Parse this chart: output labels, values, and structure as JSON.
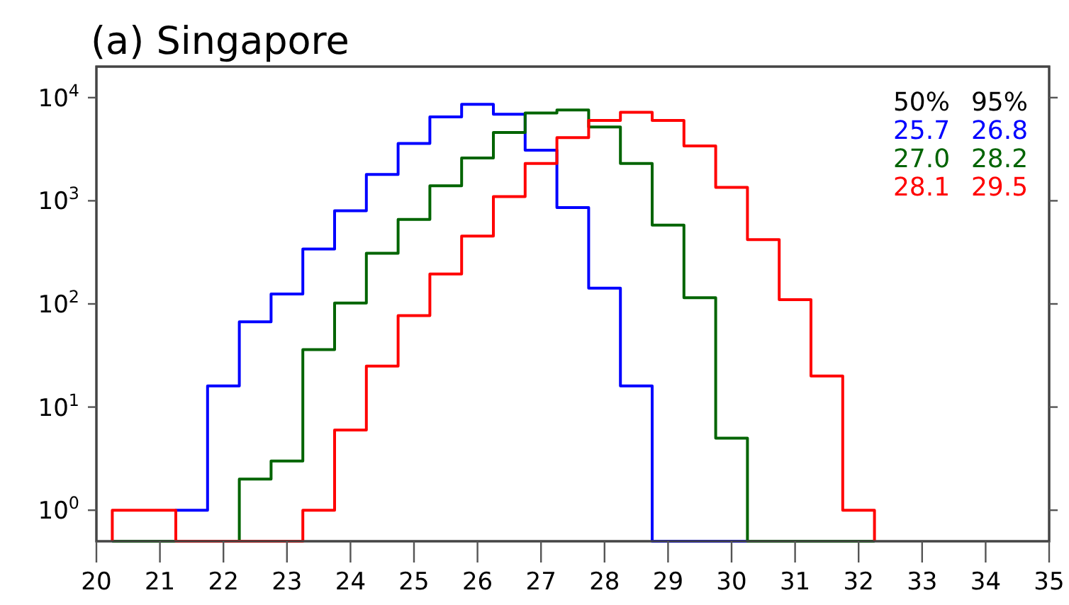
{
  "chart_data": {
    "type": "histogram",
    "title": "(a) Singapore",
    "log": "y",
    "bins": [
      20.25,
      20.75,
      21.25,
      21.75,
      22.25,
      22.75,
      23.25,
      23.75,
      24.25,
      24.75,
      25.25,
      25.75,
      26.25,
      26.75,
      27.25,
      27.75,
      28.25,
      28.75,
      29.25,
      29.75,
      30.25,
      30.75,
      31.25,
      31.75,
      32.25
    ],
    "series": [
      {
        "color": "#0000ff",
        "values": [
          null,
          null,
          1,
          16,
          67,
          125,
          340,
          800,
          1800,
          3600,
          6500,
          8600,
          6900,
          3100,
          860,
          142,
          16,
          null,
          null,
          null,
          null,
          null,
          null,
          null
        ]
      },
      {
        "color": "#006400",
        "values": [
          null,
          null,
          null,
          null,
          2,
          3,
          36,
          102,
          310,
          660,
          1400,
          2600,
          4600,
          7100,
          7600,
          5200,
          2300,
          580,
          115,
          5,
          null,
          null,
          null,
          null
        ]
      },
      {
        "color": "#ff0000",
        "values": [
          1,
          1,
          null,
          null,
          null,
          null,
          1,
          6,
          25,
          77,
          195,
          455,
          1100,
          2300,
          4100,
          6000,
          7200,
          6000,
          3400,
          1350,
          420,
          110,
          20,
          1
        ]
      }
    ],
    "xlim": [
      20,
      35
    ],
    "xticks": [
      20,
      21,
      22,
      23,
      24,
      25,
      26,
      27,
      28,
      29,
      30,
      31,
      32,
      33,
      34,
      35
    ],
    "ylim": [
      0.5,
      20000
    ],
    "yticks": [
      {
        "value": 1,
        "label": "10$^{0}$"
      },
      {
        "value": 10,
        "label": "10$^{1}$"
      },
      {
        "value": 100,
        "label": "10$^{2}$"
      },
      {
        "value": 1000,
        "label": "10$^{3}$"
      },
      {
        "value": 10000,
        "label": "10$^{4}$"
      }
    ],
    "annotations": [
      "50%",
      "95%",
      "25.7",
      "26.8",
      "27.0",
      "28.2",
      "28.1",
      "29.5"
    ],
    "grid": false
  }
}
